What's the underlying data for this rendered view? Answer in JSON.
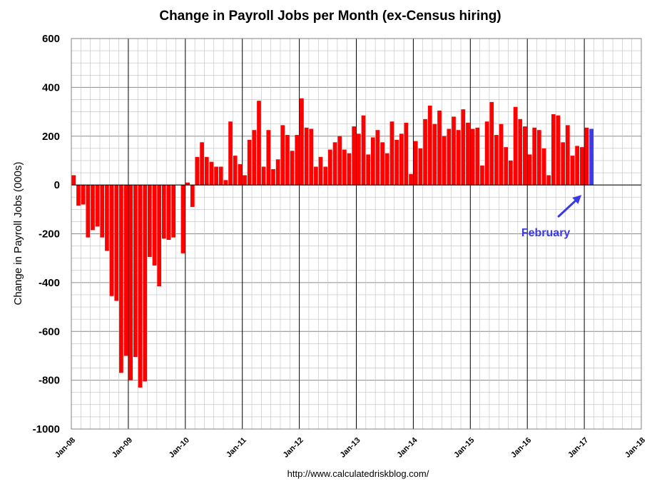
{
  "chart_data": {
    "type": "bar",
    "title": "Change in Payroll Jobs per Month (ex-Census hiring)",
    "ylabel": "Change in Payroll Jobs (000s)",
    "xlabel": "",
    "source": "http://www.calculatedriskblog.com/",
    "ylim": [
      -1000,
      600
    ],
    "yticks": [
      -1000,
      -800,
      -600,
      -400,
      -200,
      0,
      200,
      400,
      600
    ],
    "x_tick_labels": [
      "Jan-08",
      "Jan-09",
      "Jan-10",
      "Jan-11",
      "Jan-12",
      "Jan-13",
      "Jan-14",
      "Jan-15",
      "Jan-16",
      "Jan-17",
      "Jan-18"
    ],
    "start_month": "Jan-08",
    "grid": true,
    "colors": {
      "bar": "#ff0000",
      "highlight": "#3a3ae6",
      "annotation": "#3a3ae6",
      "grid": "#bfbfbf",
      "year_line": "#000000"
    },
    "annotation": {
      "text": "February",
      "target_month": "Feb-17"
    },
    "values": [
      40,
      -85,
      -80,
      -215,
      -185,
      -170,
      -215,
      -270,
      -455,
      -475,
      -770,
      -700,
      -800,
      -705,
      -830,
      -805,
      -295,
      -330,
      -415,
      -220,
      -225,
      -215,
      0,
      -280,
      10,
      -90,
      115,
      175,
      115,
      95,
      75,
      75,
      20,
      260,
      120,
      85,
      40,
      185,
      225,
      345,
      75,
      225,
      65,
      105,
      245,
      205,
      140,
      205,
      355,
      235,
      230,
      75,
      115,
      75,
      145,
      175,
      200,
      145,
      130,
      240,
      210,
      285,
      125,
      195,
      225,
      175,
      130,
      260,
      185,
      210,
      255,
      45,
      180,
      150,
      270,
      325,
      250,
      305,
      200,
      230,
      280,
      225,
      310,
      255,
      230,
      235,
      80,
      260,
      340,
      205,
      250,
      155,
      100,
      320,
      270,
      240,
      125,
      235,
      225,
      150,
      40,
      290,
      285,
      175,
      245,
      120,
      160,
      155,
      235,
      230
    ]
  }
}
